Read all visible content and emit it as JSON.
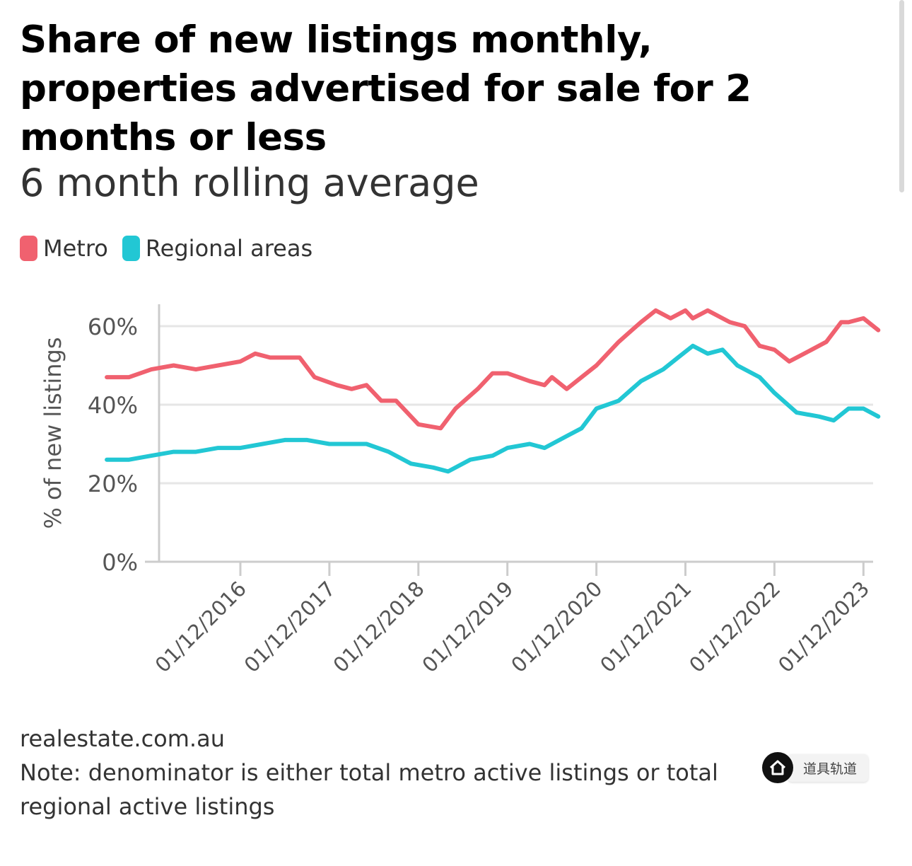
{
  "title": "Share of new listings monthly, properties advertised for sale for 2 months or less",
  "subtitle": "6 month rolling average",
  "source": "realestate.com.au",
  "note": "Note: denominator is either total metro active listings or total regional active listings",
  "watermark": {
    "label": "道具轨道",
    "icon": "home-icon"
  },
  "colors": {
    "metro": "#f0616f",
    "regional": "#22c7d4",
    "grid": "#e6e6e6",
    "axis": "#cccccc"
  },
  "chart_data": {
    "type": "line",
    "ylabel": "% of new listings",
    "xlabel": "",
    "ylim": [
      0,
      0.65
    ],
    "yticks": [
      0,
      0.2,
      0.4,
      0.6
    ],
    "ytick_labels": [
      "0%",
      "20%",
      "40%",
      "60%"
    ],
    "xticks": [
      "01/12/2016",
      "01/12/2017",
      "01/12/2018",
      "01/12/2019",
      "01/12/2020",
      "01/12/2021",
      "01/12/2022",
      "01/12/2023"
    ],
    "x_start": "2015-06",
    "x_end": "2023-12",
    "grid": true,
    "legend_position": "top-left",
    "series": [
      {
        "name": "Metro",
        "color": "#f0616f",
        "points": [
          [
            "2015-06",
            0.47
          ],
          [
            "2015-09",
            0.47
          ],
          [
            "2015-12",
            0.49
          ],
          [
            "2016-03",
            0.5
          ],
          [
            "2016-06",
            0.49
          ],
          [
            "2016-09",
            0.5
          ],
          [
            "2016-12",
            0.51
          ],
          [
            "2017-02",
            0.53
          ],
          [
            "2017-04",
            0.52
          ],
          [
            "2017-08",
            0.52
          ],
          [
            "2017-10",
            0.47
          ],
          [
            "2018-01",
            0.45
          ],
          [
            "2018-03",
            0.44
          ],
          [
            "2018-05",
            0.45
          ],
          [
            "2018-07",
            0.41
          ],
          [
            "2018-09",
            0.41
          ],
          [
            "2018-12",
            0.35
          ],
          [
            "2019-03",
            0.34
          ],
          [
            "2019-05",
            0.39
          ],
          [
            "2019-08",
            0.44
          ],
          [
            "2019-10",
            0.48
          ],
          [
            "2019-12",
            0.48
          ],
          [
            "2020-03",
            0.46
          ],
          [
            "2020-05",
            0.45
          ],
          [
            "2020-06",
            0.47
          ],
          [
            "2020-08",
            0.44
          ],
          [
            "2020-10",
            0.47
          ],
          [
            "2020-12",
            0.5
          ],
          [
            "2021-03",
            0.56
          ],
          [
            "2021-06",
            0.61
          ],
          [
            "2021-08",
            0.64
          ],
          [
            "2021-10",
            0.62
          ],
          [
            "2021-12",
            0.64
          ],
          [
            "2022-01",
            0.62
          ],
          [
            "2022-03",
            0.64
          ],
          [
            "2022-06",
            0.61
          ],
          [
            "2022-08",
            0.6
          ],
          [
            "2022-10",
            0.55
          ],
          [
            "2022-12",
            0.54
          ],
          [
            "2023-02",
            0.51
          ],
          [
            "2023-05",
            0.54
          ],
          [
            "2023-07",
            0.56
          ],
          [
            "2023-09",
            0.61
          ],
          [
            "2023-10",
            0.61
          ],
          [
            "2023-12",
            0.62
          ],
          [
            "2024-02",
            0.59
          ]
        ]
      },
      {
        "name": "Regional areas",
        "color": "#22c7d4",
        "points": [
          [
            "2015-06",
            0.26
          ],
          [
            "2015-09",
            0.26
          ],
          [
            "2015-12",
            0.27
          ],
          [
            "2016-03",
            0.28
          ],
          [
            "2016-06",
            0.28
          ],
          [
            "2016-09",
            0.29
          ],
          [
            "2016-12",
            0.29
          ],
          [
            "2017-03",
            0.3
          ],
          [
            "2017-06",
            0.31
          ],
          [
            "2017-09",
            0.31
          ],
          [
            "2017-12",
            0.3
          ],
          [
            "2018-03",
            0.3
          ],
          [
            "2018-05",
            0.3
          ],
          [
            "2018-08",
            0.28
          ],
          [
            "2018-11",
            0.25
          ],
          [
            "2019-02",
            0.24
          ],
          [
            "2019-04",
            0.23
          ],
          [
            "2019-07",
            0.26
          ],
          [
            "2019-10",
            0.27
          ],
          [
            "2019-12",
            0.29
          ],
          [
            "2020-03",
            0.3
          ],
          [
            "2020-05",
            0.29
          ],
          [
            "2020-08",
            0.32
          ],
          [
            "2020-10",
            0.34
          ],
          [
            "2020-12",
            0.39
          ],
          [
            "2021-03",
            0.41
          ],
          [
            "2021-06",
            0.46
          ],
          [
            "2021-09",
            0.49
          ],
          [
            "2021-11",
            0.52
          ],
          [
            "2022-01",
            0.55
          ],
          [
            "2022-03",
            0.53
          ],
          [
            "2022-05",
            0.54
          ],
          [
            "2022-07",
            0.5
          ],
          [
            "2022-10",
            0.47
          ],
          [
            "2022-12",
            0.43
          ],
          [
            "2023-03",
            0.38
          ],
          [
            "2023-06",
            0.37
          ],
          [
            "2023-08",
            0.36
          ],
          [
            "2023-10",
            0.39
          ],
          [
            "2023-12",
            0.39
          ],
          [
            "2024-02",
            0.37
          ]
        ]
      }
    ]
  }
}
